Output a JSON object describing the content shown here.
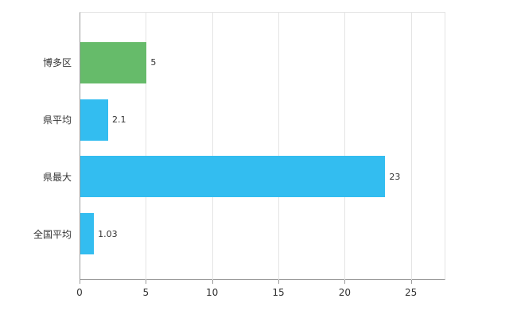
{
  "chart_data": {
    "type": "bar",
    "orientation": "horizontal",
    "title": "",
    "xlabel": "",
    "ylabel": "",
    "categories": [
      "博多区",
      "県平均",
      "県最大",
      "全国平均"
    ],
    "values": [
      5,
      2.1,
      23,
      1.03
    ],
    "value_labels": [
      "5",
      "2.1",
      "23",
      "1.03"
    ],
    "bar_colors": [
      "#66bb6a",
      "#33bdf0",
      "#33bdf0",
      "#33bdf0"
    ],
    "xlim": [
      0,
      27.6
    ],
    "x_ticks": [
      0,
      5,
      10,
      15,
      20,
      25
    ],
    "x_tick_labels": [
      "0",
      "5",
      "10",
      "15",
      "20",
      "25"
    ],
    "grid": true,
    "legend": "none"
  },
  "colors": {
    "axis": "#9a9a9a",
    "gridline": "#e4e4e4",
    "text": "#333333",
    "background": "#ffffff"
  }
}
